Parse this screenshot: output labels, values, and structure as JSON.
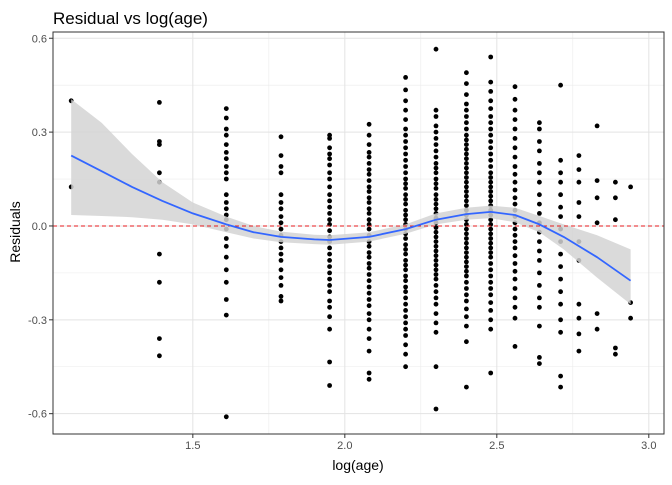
{
  "chart_data": {
    "type": "scatter",
    "title": "Residual vs log(age)",
    "xlabel": "log(age)",
    "ylabel": "Residuals",
    "xlim": [
      1.04,
      3.05
    ],
    "ylim": [
      -0.665,
      0.62
    ],
    "x_ticks": [
      1.5,
      2.0,
      2.5,
      3.0
    ],
    "x_tick_labels": [
      "1.5",
      "2.0",
      "2.5",
      "3.0"
    ],
    "y_ticks": [
      -0.6,
      -0.3,
      0.0,
      0.3,
      0.6
    ],
    "y_tick_labels": [
      "-0.6",
      "-0.3",
      "0.0",
      "0.3",
      "0.6"
    ],
    "grid": true,
    "reference_line": {
      "y": 0.0,
      "color": "#e41a1c",
      "style": "dashed"
    },
    "point_color": "#000000",
    "smooth_color": "#3366ff",
    "band_color": "#d3d3d3",
    "smooth": {
      "x": [
        1.1,
        1.2,
        1.3,
        1.4,
        1.5,
        1.61,
        1.7,
        1.79,
        1.9,
        1.95,
        2.08,
        2.2,
        2.3,
        2.4,
        2.48,
        2.56,
        2.64,
        2.72,
        2.83,
        2.94
      ],
      "y": [
        0.225,
        0.175,
        0.125,
        0.08,
        0.04,
        0.005,
        -0.02,
        -0.035,
        -0.043,
        -0.045,
        -0.035,
        -0.01,
        0.02,
        0.038,
        0.045,
        0.035,
        0.005,
        -0.035,
        -0.1,
        -0.175
      ],
      "lower": [
        0.035,
        0.032,
        0.028,
        0.02,
        0.005,
        -0.02,
        -0.04,
        -0.052,
        -0.058,
        -0.06,
        -0.05,
        -0.025,
        0.005,
        0.02,
        0.025,
        0.012,
        -0.02,
        -0.075,
        -0.165,
        -0.25
      ],
      "upper": [
        0.405,
        0.33,
        0.23,
        0.14,
        0.075,
        0.03,
        0.0,
        -0.018,
        -0.028,
        -0.03,
        -0.02,
        0.005,
        0.04,
        0.058,
        0.065,
        0.058,
        0.032,
        0.005,
        -0.03,
        -0.075
      ]
    },
    "points": [
      {
        "x": 1.1,
        "y": [
          0.4,
          0.125
        ]
      },
      {
        "x": 1.39,
        "y": [
          0.395,
          0.27,
          0.26,
          0.17,
          0.14,
          -0.09,
          -0.18,
          -0.36,
          -0.415
        ]
      },
      {
        "x": 1.61,
        "y": [
          0.375,
          0.345,
          0.31,
          0.29,
          0.26,
          0.235,
          0.215,
          0.19,
          0.17,
          0.15,
          0.1,
          0.075,
          0.055,
          0.035,
          0.02,
          -0.01,
          -0.04,
          -0.065,
          -0.1,
          -0.14,
          -0.18,
          -0.235,
          -0.285,
          -0.61
        ]
      },
      {
        "x": 1.79,
        "y": [
          0.285,
          0.225,
          0.19,
          0.17,
          0.1,
          0.075,
          0.055,
          0.03,
          0.01,
          -0.01,
          -0.03,
          -0.05,
          -0.07,
          -0.09,
          -0.11,
          -0.14,
          -0.165,
          -0.19,
          -0.225,
          -0.24
        ]
      },
      {
        "x": 1.95,
        "y": [
          0.29,
          0.28,
          0.25,
          0.23,
          0.215,
          0.195,
          0.17,
          0.15,
          0.125,
          0.1,
          0.08,
          0.06,
          0.04,
          0.02,
          0.005,
          -0.015,
          -0.035,
          -0.05,
          -0.07,
          -0.09,
          -0.11,
          -0.13,
          -0.15,
          -0.17,
          -0.19,
          -0.21,
          -0.24,
          -0.26,
          -0.29,
          -0.33,
          -0.435,
          -0.51
        ]
      },
      {
        "x": 2.08,
        "y": [
          0.325,
          0.29,
          0.26,
          0.235,
          0.22,
          0.2,
          0.18,
          0.165,
          0.145,
          0.125,
          0.11,
          0.09,
          0.075,
          0.055,
          0.04,
          0.02,
          0.005,
          -0.01,
          -0.03,
          -0.05,
          -0.065,
          -0.085,
          -0.1,
          -0.12,
          -0.135,
          -0.155,
          -0.175,
          -0.195,
          -0.215,
          -0.235,
          -0.255,
          -0.28,
          -0.3,
          -0.33,
          -0.36,
          -0.4,
          -0.47,
          -0.49
        ]
      },
      {
        "x": 2.2,
        "y": [
          0.475,
          0.435,
          0.4,
          0.37,
          0.34,
          0.31,
          0.29,
          0.27,
          0.25,
          0.23,
          0.21,
          0.19,
          0.17,
          0.15,
          0.135,
          0.12,
          0.1,
          0.085,
          0.07,
          0.05,
          0.035,
          0.02,
          0.005,
          -0.01,
          -0.025,
          -0.04,
          -0.06,
          -0.075,
          -0.09,
          -0.11,
          -0.125,
          -0.14,
          -0.16,
          -0.175,
          -0.195,
          -0.21,
          -0.23,
          -0.25,
          -0.27,
          -0.29,
          -0.31,
          -0.33,
          -0.35,
          -0.38,
          -0.41,
          -0.45
        ]
      },
      {
        "x": 2.3,
        "y": [
          0.565,
          0.37,
          0.35,
          0.32,
          0.3,
          0.28,
          0.26,
          0.24,
          0.22,
          0.2,
          0.185,
          0.17,
          0.15,
          0.135,
          0.12,
          0.1,
          0.085,
          0.07,
          0.055,
          0.04,
          0.025,
          0.01,
          -0.005,
          -0.02,
          -0.035,
          -0.05,
          -0.065,
          -0.08,
          -0.095,
          -0.11,
          -0.125,
          -0.14,
          -0.155,
          -0.17,
          -0.19,
          -0.21,
          -0.23,
          -0.25,
          -0.28,
          -0.31,
          -0.34,
          -0.45,
          -0.585
        ]
      },
      {
        "x": 2.4,
        "y": [
          0.49,
          0.455,
          0.42,
          0.39,
          0.37,
          0.35,
          0.33,
          0.31,
          0.29,
          0.275,
          0.26,
          0.245,
          0.23,
          0.215,
          0.2,
          0.185,
          0.17,
          0.155,
          0.14,
          0.125,
          0.11,
          0.095,
          0.08,
          0.065,
          0.05,
          0.035,
          0.02,
          0.005,
          -0.01,
          -0.025,
          -0.04,
          -0.055,
          -0.07,
          -0.085,
          -0.1,
          -0.115,
          -0.13,
          -0.145,
          -0.16,
          -0.18,
          -0.2,
          -0.22,
          -0.24,
          -0.265,
          -0.29,
          -0.32,
          -0.37,
          -0.515
        ]
      },
      {
        "x": 2.48,
        "y": [
          0.54,
          0.46,
          0.43,
          0.4,
          0.375,
          0.35,
          0.33,
          0.31,
          0.29,
          0.27,
          0.25,
          0.23,
          0.21,
          0.19,
          0.17,
          0.155,
          0.14,
          0.125,
          0.11,
          0.095,
          0.08,
          0.065,
          0.05,
          0.035,
          0.02,
          0.005,
          -0.01,
          -0.025,
          -0.04,
          -0.055,
          -0.07,
          -0.085,
          -0.1,
          -0.12,
          -0.14,
          -0.16,
          -0.18,
          -0.2,
          -0.22,
          -0.245,
          -0.27,
          -0.3,
          -0.33,
          -0.47
        ]
      },
      {
        "x": 2.56,
        "y": [
          0.445,
          0.405,
          0.37,
          0.34,
          0.31,
          0.28,
          0.25,
          0.22,
          0.19,
          0.165,
          0.14,
          0.115,
          0.09,
          0.07,
          0.05,
          0.03,
          0.01,
          -0.01,
          -0.03,
          -0.05,
          -0.07,
          -0.095,
          -0.12,
          -0.145,
          -0.17,
          -0.2,
          -0.23,
          -0.26,
          -0.295,
          -0.385
        ]
      },
      {
        "x": 2.64,
        "y": [
          0.33,
          0.31,
          0.27,
          0.24,
          0.2,
          0.17,
          0.14,
          0.1,
          0.07,
          0.04,
          0.01,
          -0.02,
          -0.05,
          -0.08,
          -0.11,
          -0.15,
          -0.19,
          -0.23,
          -0.26,
          -0.32,
          -0.42,
          -0.44
        ]
      },
      {
        "x": 2.71,
        "y": [
          0.45,
          0.21,
          0.17,
          0.14,
          0.1,
          0.06,
          0.03,
          -0.01,
          -0.05,
          -0.09,
          -0.13,
          -0.17,
          -0.21,
          -0.25,
          -0.3,
          -0.34,
          -0.48,
          -0.515
        ]
      },
      {
        "x": 2.77,
        "y": [
          0.225,
          0.18,
          0.14,
          0.075,
          0.03,
          -0.05,
          -0.11,
          -0.25,
          -0.295,
          -0.345,
          -0.4
        ]
      },
      {
        "x": 2.83,
        "y": [
          0.32,
          0.145,
          0.09,
          0.01,
          -0.28,
          -0.33
        ]
      },
      {
        "x": 2.89,
        "y": [
          0.14,
          0.09,
          0.02,
          -0.39,
          -0.41
        ]
      },
      {
        "x": 2.94,
        "y": [
          0.125,
          -0.245,
          -0.295
        ]
      }
    ]
  }
}
